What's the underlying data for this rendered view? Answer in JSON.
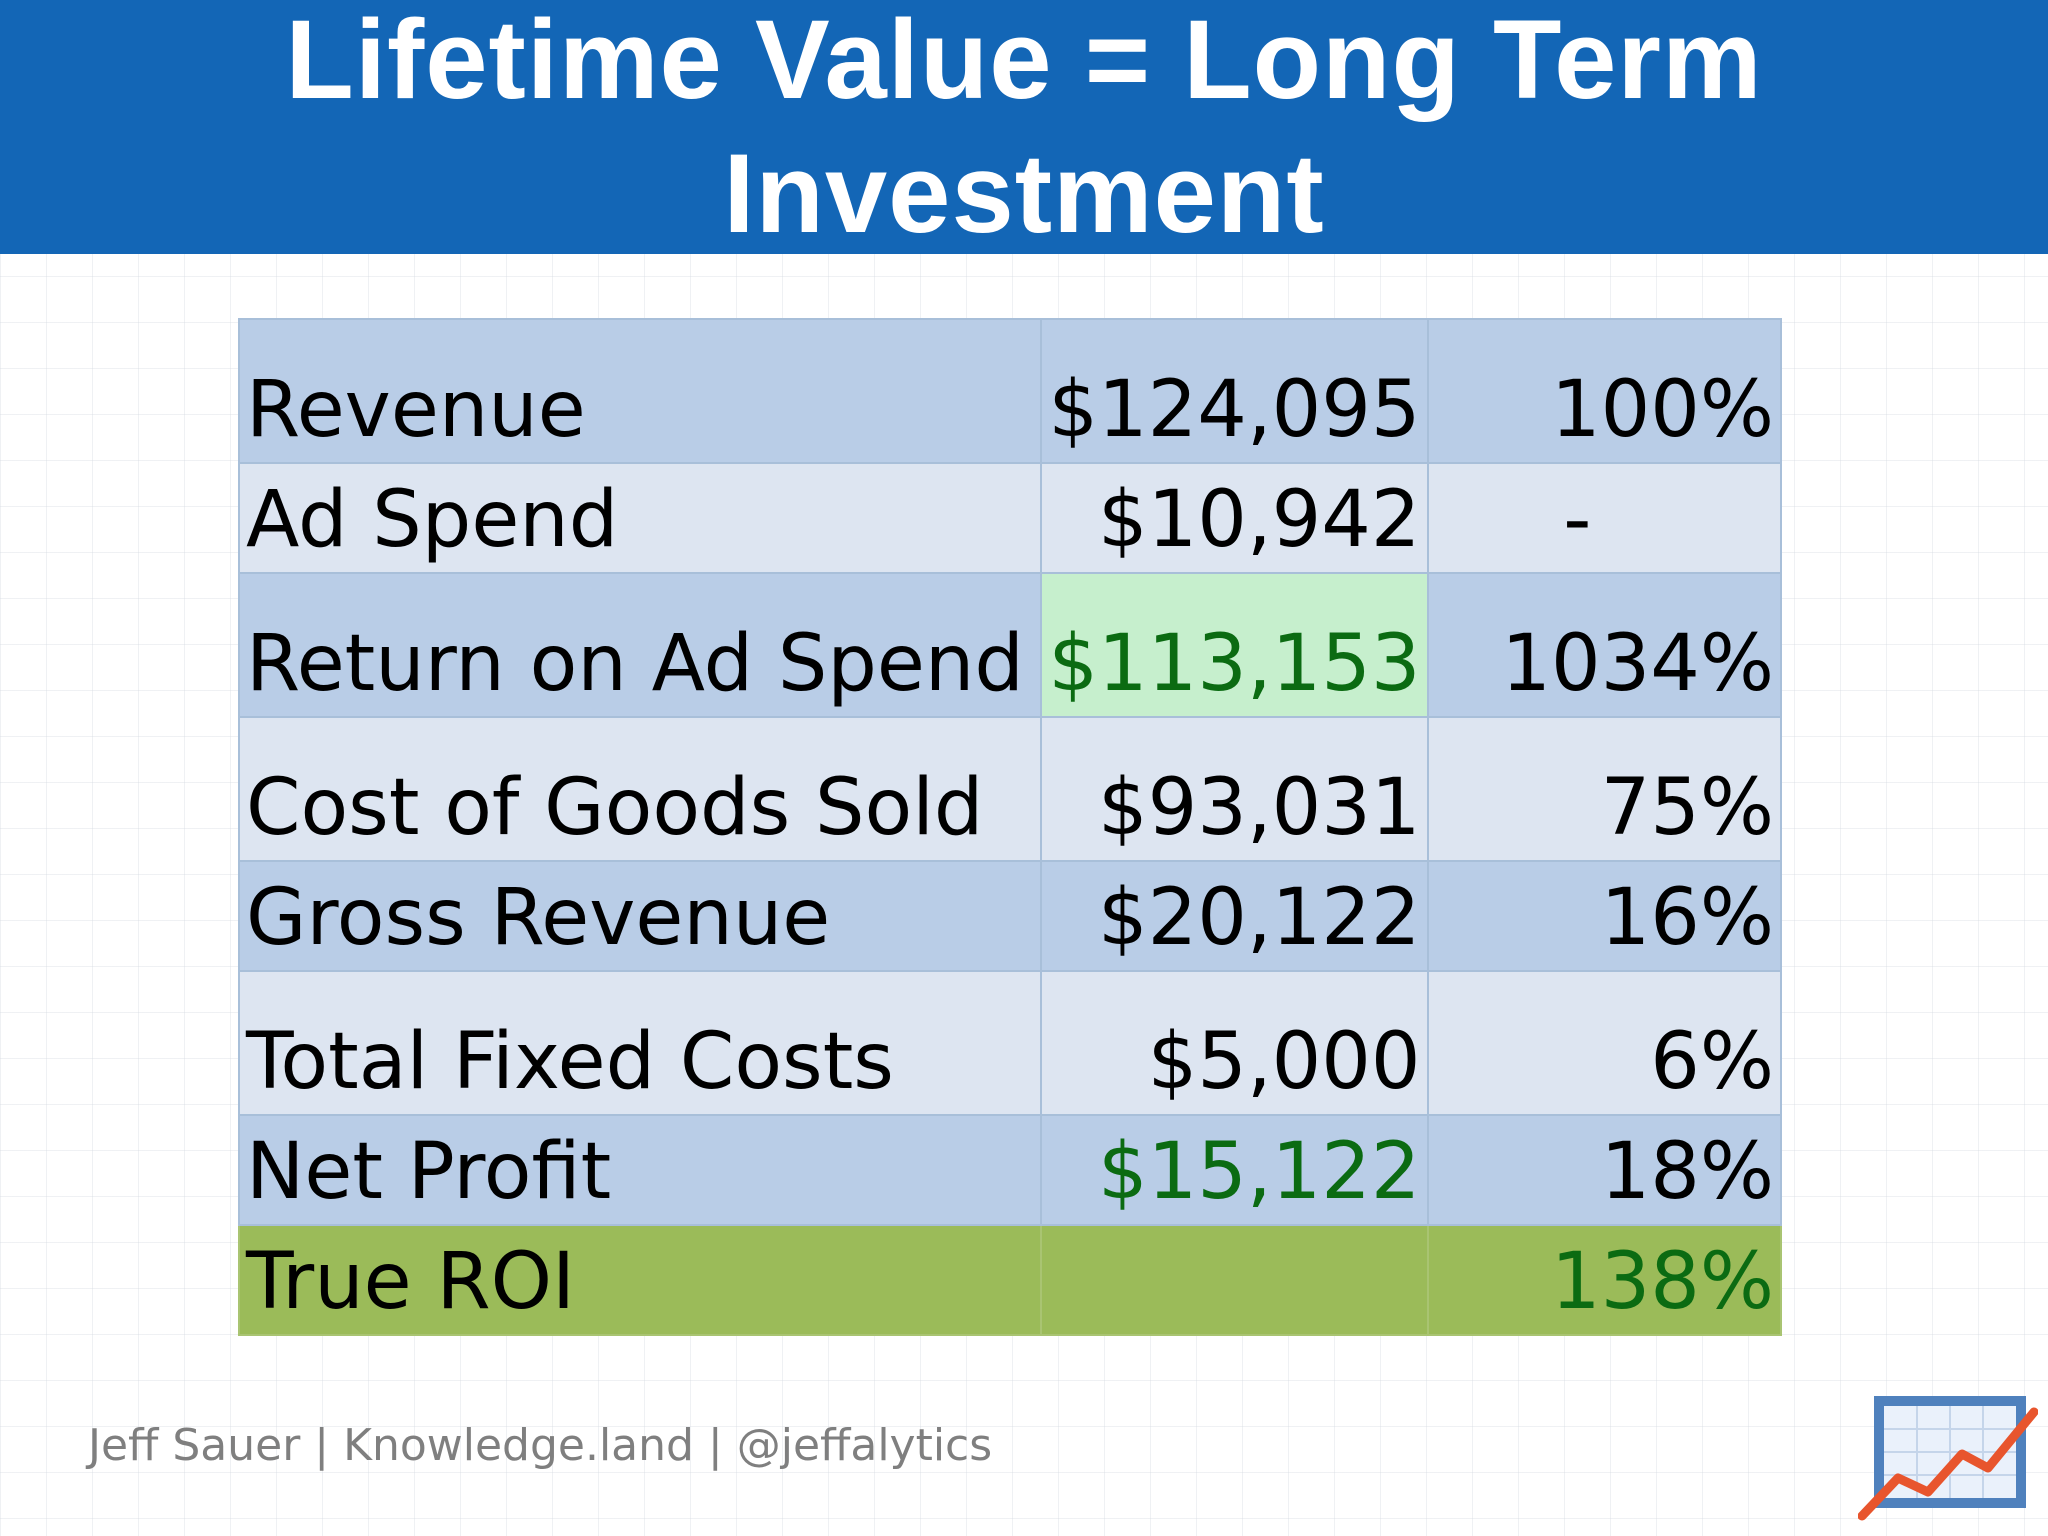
{
  "title": "Lifetime Value = Long Term Investment",
  "table": {
    "rows": [
      {
        "label": "Revenue",
        "value": "$124,095",
        "percent": "100%"
      },
      {
        "label": "Ad Spend",
        "value": "$10,942",
        "percent": "-"
      },
      {
        "label": "Return on Ad Spend",
        "value": "$113,153",
        "percent": "1034%"
      },
      {
        "label": "Cost of Goods Sold",
        "value": "$93,031",
        "percent": "75%"
      },
      {
        "label": "Gross Revenue",
        "value": "$20,122",
        "percent": "16%"
      },
      {
        "label": "Total Fixed Costs",
        "value": "$5,000",
        "percent": "6%"
      },
      {
        "label": "Net Profit",
        "value": "$15,122",
        "percent": "18%"
      },
      {
        "label": "True ROI",
        "value": "",
        "percent": "138%"
      }
    ]
  },
  "footer": "Jeff Sauer | Knowledge.land | @jeffalytics",
  "logo": {
    "icon": "chart-trend-icon"
  },
  "colors": {
    "title_bar": "#1366b6",
    "row_dark": "#b9cde7",
    "row_light": "#dde5f1",
    "highlight_cell": "#c6efcd",
    "roi_row": "#9bbb59",
    "positive_text": "#0b6b12"
  }
}
